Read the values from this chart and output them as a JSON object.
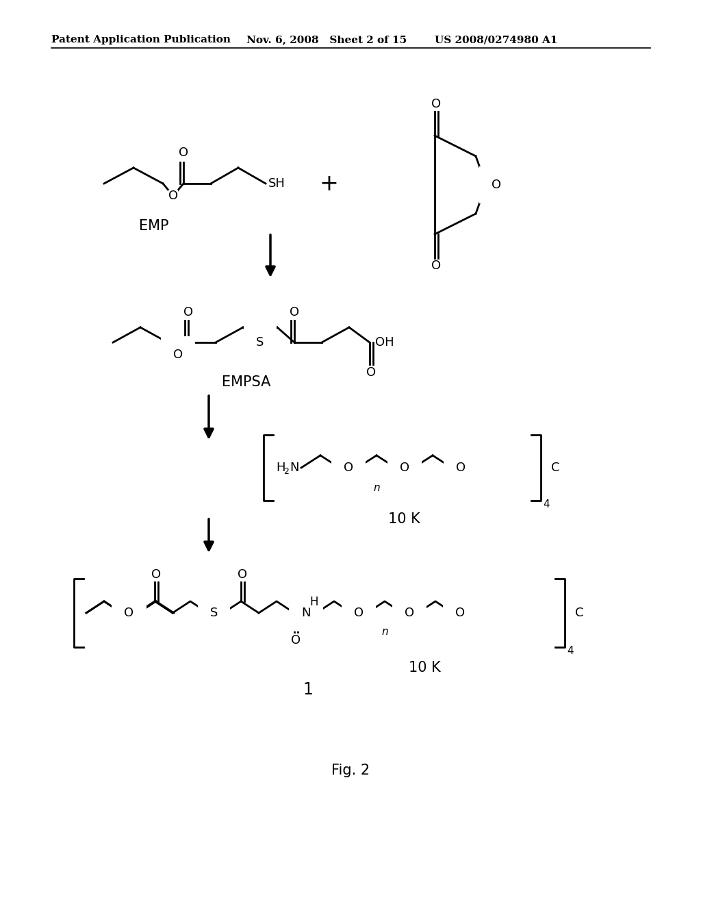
{
  "bg_color": "#ffffff",
  "header_left": "Patent Application Publication",
  "header_mid": "Nov. 6, 2008   Sheet 2 of 15",
  "header_right": "US 2008/0274980 A1",
  "fig_label": "Fig. 2",
  "label_1": "1",
  "label_EMP": "EMP",
  "label_EMPSA": "EMPSA",
  "label_10K_1": "10 K",
  "label_10K_2": "10 K"
}
